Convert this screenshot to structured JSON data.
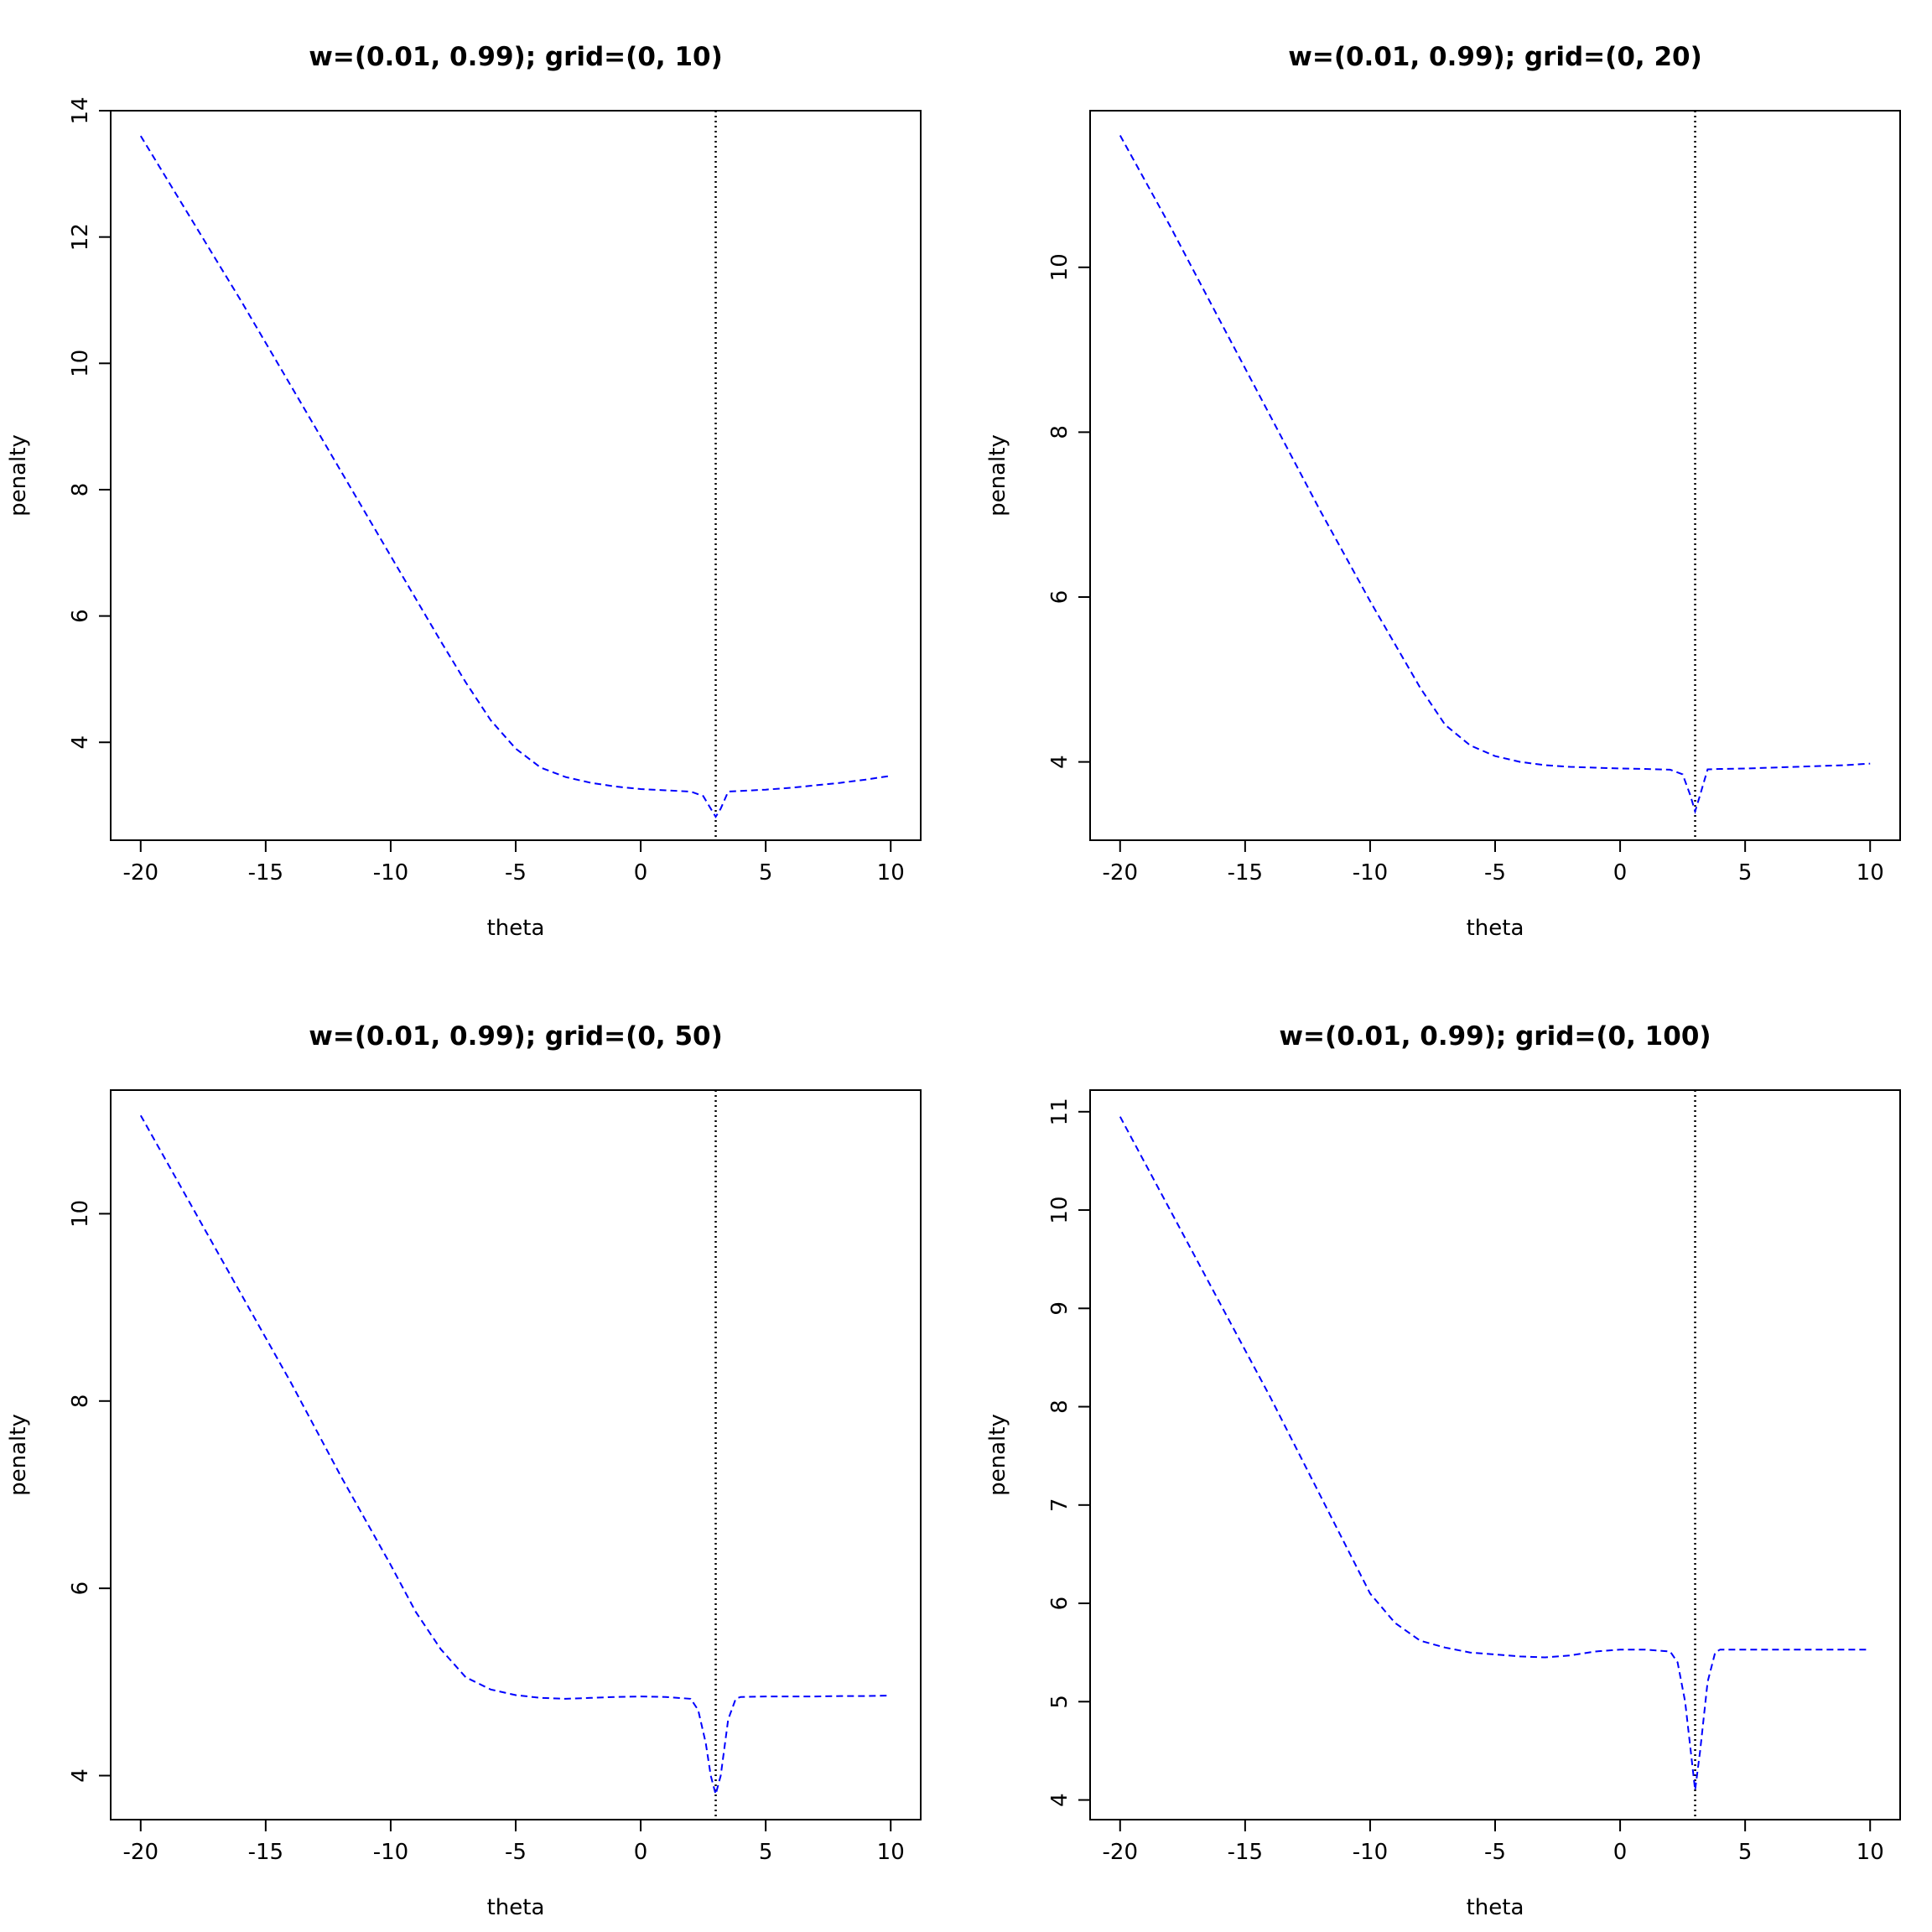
{
  "chart_data": [
    {
      "type": "line",
      "title": "w=(0.01, 0.99); grid=(0, 10)",
      "xlabel": "theta",
      "ylabel": "penalty",
      "xlim": [
        -21.2,
        11.2
      ],
      "ylim": [
        2.45,
        14
      ],
      "xticks": [
        -20,
        -15,
        -10,
        -5,
        0,
        5,
        10
      ],
      "yticks": [
        4,
        6,
        8,
        10,
        12,
        14
      ],
      "vline": 3,
      "series": [
        {
          "color": "#0000ff",
          "linestyle": "dashed",
          "x": [
            -20,
            -18,
            -16,
            -14,
            -12,
            -10,
            -8,
            -7,
            -6,
            -5,
            -4,
            -3,
            -2,
            -1,
            0,
            1,
            2,
            2.5,
            2.8,
            3,
            3.2,
            3.5,
            4,
            5,
            6,
            7,
            8,
            9,
            10
          ],
          "y": [
            13.6,
            12.3,
            11.0,
            9.65,
            8.3,
            6.95,
            5.6,
            4.95,
            4.35,
            3.9,
            3.6,
            3.45,
            3.36,
            3.3,
            3.26,
            3.24,
            3.22,
            3.15,
            2.95,
            2.82,
            2.95,
            3.22,
            3.23,
            3.25,
            3.28,
            3.32,
            3.36,
            3.41,
            3.47
          ]
        }
      ]
    },
    {
      "type": "line",
      "title": "w=(0.01, 0.99); grid=(0, 20)",
      "xlabel": "theta",
      "ylabel": "penalty",
      "xlim": [
        -21.2,
        11.2
      ],
      "ylim": [
        3.05,
        11.9
      ],
      "xticks": [
        -20,
        -15,
        -10,
        -5,
        0,
        5,
        10
      ],
      "yticks": [
        4,
        6,
        8,
        10
      ],
      "vline": 3,
      "series": [
        {
          "color": "#0000ff",
          "linestyle": "dashed",
          "x": [
            -20,
            -18,
            -16,
            -14,
            -12,
            -10,
            -8,
            -7,
            -6,
            -5,
            -4,
            -3,
            -2,
            -1,
            0,
            1,
            2,
            2.5,
            2.8,
            3,
            3.2,
            3.5,
            4,
            5,
            6,
            7,
            8,
            9,
            10
          ],
          "y": [
            11.6,
            10.5,
            9.35,
            8.2,
            7.05,
            5.95,
            4.9,
            4.45,
            4.2,
            4.07,
            4.0,
            3.96,
            3.94,
            3.93,
            3.92,
            3.915,
            3.905,
            3.85,
            3.6,
            3.4,
            3.6,
            3.91,
            3.915,
            3.92,
            3.93,
            3.94,
            3.95,
            3.96,
            3.98
          ]
        }
      ]
    },
    {
      "type": "line",
      "title": "w=(0.01, 0.99); grid=(0, 50)",
      "xlabel": "theta",
      "ylabel": "penalty",
      "xlim": [
        -21.2,
        11.2
      ],
      "ylim": [
        3.53,
        11.32
      ],
      "xticks": [
        -20,
        -15,
        -10,
        -5,
        0,
        5,
        10
      ],
      "yticks": [
        4,
        6,
        8,
        10
      ],
      "vline": 3,
      "series": [
        {
          "color": "#0000ff",
          "linestyle": "dashed",
          "x": [
            -20,
            -18,
            -16,
            -14,
            -12,
            -10,
            -9,
            -8,
            -7,
            -6,
            -5,
            -4,
            -3,
            -2,
            -1,
            0,
            1,
            2,
            2.3,
            2.6,
            2.8,
            3,
            3.2,
            3.5,
            3.8,
            4,
            5,
            6,
            7,
            8,
            9,
            10
          ],
          "y": [
            11.05,
            10.1,
            9.15,
            8.2,
            7.2,
            6.25,
            5.75,
            5.35,
            5.05,
            4.92,
            4.86,
            4.83,
            4.82,
            4.83,
            4.84,
            4.845,
            4.84,
            4.82,
            4.7,
            4.35,
            4.0,
            3.8,
            4.0,
            4.6,
            4.82,
            4.84,
            4.845,
            4.845,
            4.845,
            4.85,
            4.85,
            4.855
          ]
        }
      ]
    },
    {
      "type": "line",
      "title": "w=(0.01, 0.99); grid=(0, 100)",
      "xlabel": "theta",
      "ylabel": "penalty",
      "xlim": [
        -21.2,
        11.2
      ],
      "ylim": [
        3.8,
        11.22
      ],
      "xticks": [
        -20,
        -15,
        -10,
        -5,
        0,
        5,
        10
      ],
      "yticks": [
        4,
        5,
        6,
        7,
        8,
        9,
        10,
        11
      ],
      "vline": 3,
      "series": [
        {
          "color": "#0000ff",
          "linestyle": "dashed",
          "x": [
            -20,
            -18,
            -16,
            -14,
            -12,
            -11,
            -10,
            -9,
            -8,
            -7,
            -6,
            -5,
            -4,
            -3,
            -2,
            -1,
            0,
            1,
            2,
            2.3,
            2.6,
            2.8,
            3,
            3.2,
            3.5,
            3.8,
            4,
            5,
            6,
            7,
            8,
            9,
            10
          ],
          "y": [
            10.95,
            10.0,
            9.05,
            8.1,
            7.1,
            6.6,
            6.1,
            5.8,
            5.62,
            5.55,
            5.5,
            5.48,
            5.46,
            5.45,
            5.47,
            5.51,
            5.53,
            5.53,
            5.51,
            5.4,
            5.0,
            4.55,
            4.1,
            4.5,
            5.2,
            5.5,
            5.53,
            5.53,
            5.53,
            5.53,
            5.53,
            5.53,
            5.53
          ]
        }
      ]
    }
  ]
}
